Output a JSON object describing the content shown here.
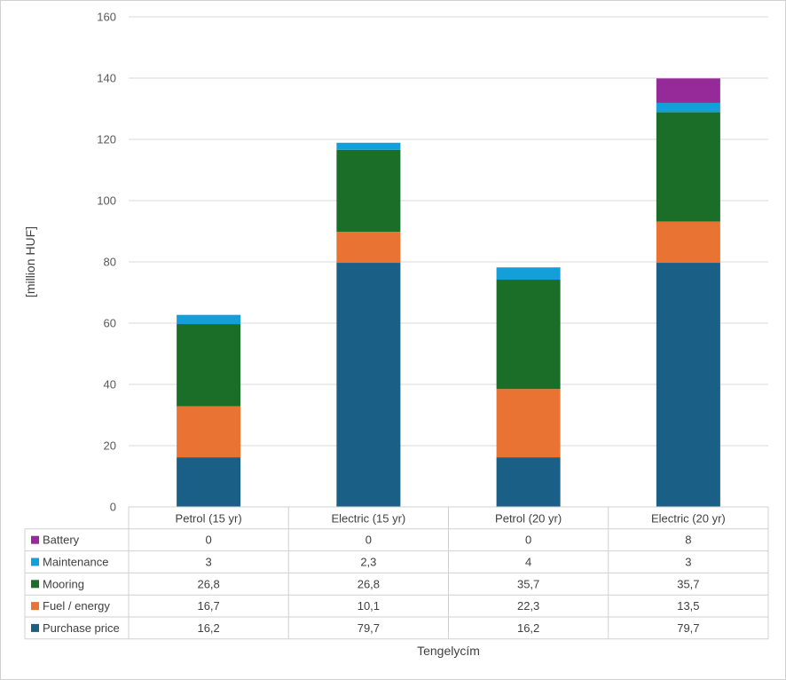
{
  "chart_data": {
    "type": "bar",
    "stacked": true,
    "categories": [
      "Petrol (15 yr)",
      "Electric (15 yr)",
      "Petrol (20 yr)",
      "Electric (20 yr)"
    ],
    "series": [
      {
        "name": "Purchase price",
        "color": "#1a5f85",
        "values": [
          16.2,
          79.7,
          16.2,
          79.7
        ],
        "labels": [
          "16,2",
          "79,7",
          "16,2",
          "79,7"
        ]
      },
      {
        "name": "Fuel / energy",
        "color": "#e97332",
        "values": [
          16.7,
          10.1,
          22.3,
          13.5
        ],
        "labels": [
          "16,7",
          "10,1",
          "22,3",
          "13,5"
        ]
      },
      {
        "name": "Mooring",
        "color": "#1b6e27",
        "values": [
          26.8,
          26.8,
          35.7,
          35.7
        ],
        "labels": [
          "26,8",
          "26,8",
          "35,7",
          "35,7"
        ]
      },
      {
        "name": "Maintenance",
        "color": "#149fd9",
        "values": [
          3,
          2.3,
          4,
          3
        ],
        "labels": [
          "3",
          "2,3",
          "4",
          "3"
        ]
      },
      {
        "name": "Battery",
        "color": "#962a99",
        "values": [
          0,
          0,
          0,
          8
        ],
        "labels": [
          "0",
          "0",
          "0",
          "8"
        ]
      }
    ],
    "xlabel": "Tengelycím",
    "ylabel": "[million HUF]",
    "ylim": [
      0,
      160
    ],
    "yticks": [
      0,
      20,
      40,
      60,
      80,
      100,
      120,
      140,
      160
    ],
    "grid": true,
    "legend": "data-table"
  }
}
